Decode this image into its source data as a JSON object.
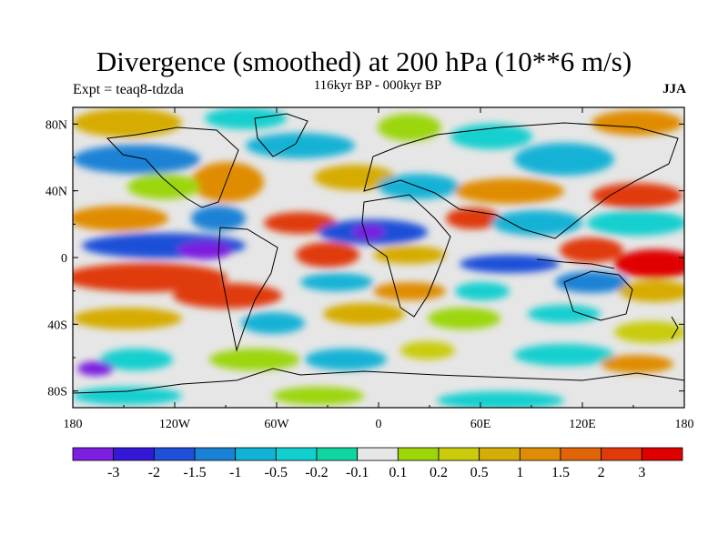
{
  "title": "Divergence (smoothed) at 200 hPa (10**6 m/s)",
  "subtitle_left": "Expt = teaq8-tdzda",
  "subtitle_center": "116kyr BP - 000kyr BP",
  "subtitle_right": "JJA",
  "map_data": {
    "type": "filled-contour-map",
    "lon_range": [
      -180,
      180
    ],
    "lat_range": [
      -90,
      90
    ],
    "y_tick_labels": [
      "80N",
      "40N",
      "0",
      "40S",
      "80S"
    ],
    "x_tick_labels": [
      "180",
      "120W",
      "60W",
      "0",
      "60E",
      "120E",
      "180"
    ]
  },
  "colorbar": {
    "colors": [
      "#7c1fe0",
      "#3418d8",
      "#1e50d8",
      "#1a82d6",
      "#12b2d6",
      "#12cfcf",
      "#0fd6a0",
      "#e6e6e6",
      "#9cd60a",
      "#c9cc0a",
      "#d6ac06",
      "#e08c06",
      "#e06408",
      "#e03a0a",
      "#e00000"
    ],
    "labels": [
      "-3",
      "-2",
      "-1.5",
      "-1",
      "-0.5",
      "-0.2",
      "-0.1",
      "0.1",
      "0.2",
      "0.5",
      "1",
      "1.5",
      "2",
      "3"
    ]
  }
}
